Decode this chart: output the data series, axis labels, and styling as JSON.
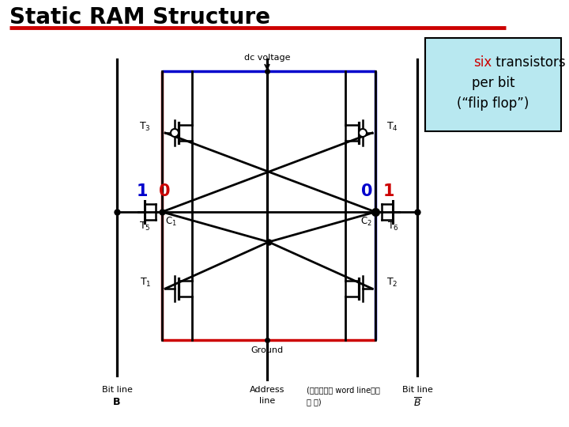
{
  "title": "Static RAM Structure",
  "title_fontsize": 20,
  "title_color": "#000000",
  "bg_color": "#ffffff",
  "underline_color": "#cc0000",
  "box_color": "#b8e8f0",
  "red_color": "#cc0000",
  "blue_color": "#0000cc",
  "black_color": "#000000",
  "dc_voltage_label": "dc voltage",
  "ground_label": "Ground",
  "address_note": "(일반적으로 word line이라\n고 함)"
}
